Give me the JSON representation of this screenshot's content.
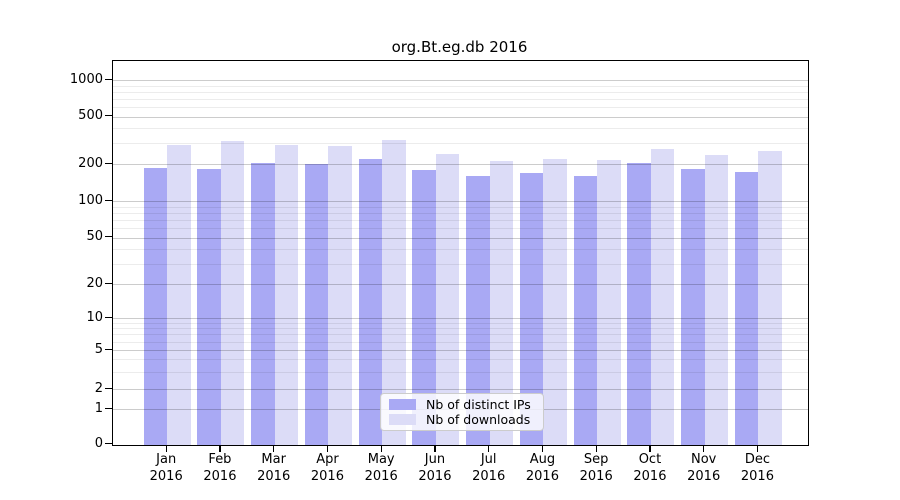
{
  "figure": {
    "background": "#ffffff"
  },
  "chart_data": {
    "type": "bar",
    "title": "org.Bt.eg.db 2016",
    "categories": [
      "Jan 2016",
      "Feb 2016",
      "Mar 2016",
      "Apr 2016",
      "May 2016",
      "Jun 2016",
      "Jul 2016",
      "Aug 2016",
      "Sep 2016",
      "Oct 2016",
      "Nov 2016",
      "Dec 2016"
    ],
    "series": [
      {
        "name": "Nb of distinct IPs",
        "color": "#a9a9f4",
        "values": [
          186,
          182,
          206,
          200,
          220,
          180,
          160,
          171,
          161,
          204,
          184,
          172
        ]
      },
      {
        "name": "Nb of downloads",
        "color": "#dcdcf7",
        "values": [
          290,
          313,
          290,
          284,
          319,
          242,
          213,
          223,
          217,
          267,
          240,
          258
        ]
      }
    ],
    "xlabel": "",
    "ylabel": "",
    "yscale": "log-like with 0 baseline",
    "yticks": [
      0,
      1,
      2,
      5,
      10,
      20,
      50,
      100,
      200,
      500,
      1000
    ],
    "y_minor_gridlines": [
      3,
      4,
      6,
      7,
      8,
      9,
      30,
      40,
      60,
      70,
      80,
      90,
      300,
      400,
      600,
      700,
      800,
      900
    ],
    "grid": "horizontal major+minor",
    "legend_position": "inside bottom-center"
  },
  "colors": {
    "bar_distinct_ips": "#a9a9f4",
    "bar_downloads": "#dcdcf7",
    "grid_major": "#cccccc",
    "grid_minor": "#ebebeb",
    "axis": "#000000",
    "text": "#000000"
  }
}
